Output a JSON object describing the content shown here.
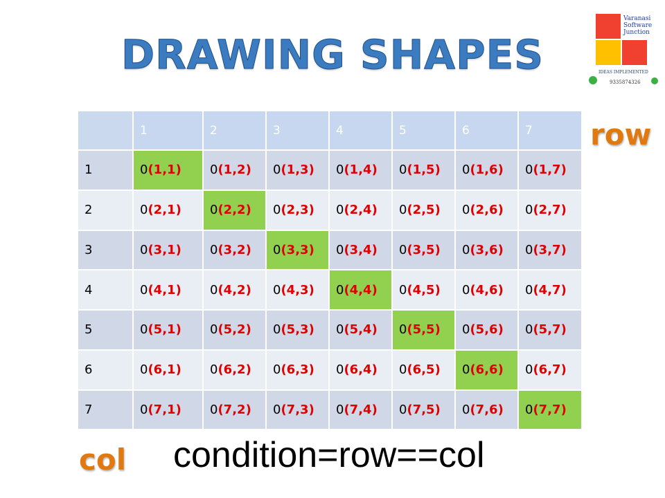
{
  "header": {
    "title": "DRAWING SHAPES"
  },
  "logo": {
    "company": [
      "Varanasi",
      "Software",
      "Junction"
    ],
    "tagline": "IDEAS IMPLEMENTED",
    "phone": "9335874326"
  },
  "row_label": "row",
  "col_label": "col",
  "condition": "condition=row==col",
  "table": {
    "columns": [
      "1",
      "2",
      "3",
      "4",
      "5",
      "6",
      "7"
    ],
    "rows": [
      {
        "label": "1",
        "cells": [
          {
            "zero": "0",
            "pos": "(1,1)",
            "highlight": true
          },
          {
            "zero": "0",
            "pos": "(1,2)"
          },
          {
            "zero": "0",
            "pos": "(1,3)"
          },
          {
            "zero": "0",
            "pos": "(1,4)"
          },
          {
            "zero": "0",
            "pos": "(1,5)"
          },
          {
            "zero": "0",
            "pos": "(1,6)"
          },
          {
            "zero": "0",
            "pos": "(1,7)"
          }
        ]
      },
      {
        "label": "2",
        "cells": [
          {
            "zero": "0",
            "pos": "(2,1)"
          },
          {
            "zero": "0",
            "pos": "(2,2)",
            "highlight": true
          },
          {
            "zero": "0",
            "pos": "(2,3)"
          },
          {
            "zero": "0",
            "pos": "(2,4)"
          },
          {
            "zero": "0",
            "pos": "(2,5)"
          },
          {
            "zero": "0",
            "pos": "(2,6)"
          },
          {
            "zero": "0",
            "pos": "(2,7)"
          }
        ]
      },
      {
        "label": "3",
        "cells": [
          {
            "zero": "0",
            "pos": "(3,1)"
          },
          {
            "zero": "0",
            "pos": "(3,2)"
          },
          {
            "zero": "0",
            "pos": "(3,3)",
            "highlight": true
          },
          {
            "zero": "0",
            "pos": "(3,4)"
          },
          {
            "zero": "0",
            "pos": "(3,5)"
          },
          {
            "zero": "0",
            "pos": "(3,6)"
          },
          {
            "zero": "0",
            "pos": "(3,7)"
          }
        ]
      },
      {
        "label": "4",
        "cells": [
          {
            "zero": "0",
            "pos": "(4,1)"
          },
          {
            "zero": "0",
            "pos": "(4,2)"
          },
          {
            "zero": "0",
            "pos": "(4,3)"
          },
          {
            "zero": "0",
            "pos": "(4,4)",
            "highlight": true
          },
          {
            "zero": "0",
            "pos": "(4,5)"
          },
          {
            "zero": "0",
            "pos": "(4,6)"
          },
          {
            "zero": "0",
            "pos": "(4,7)"
          }
        ]
      },
      {
        "label": "5",
        "cells": [
          {
            "zero": "0",
            "pos": "(5,1)"
          },
          {
            "zero": "0",
            "pos": "(5,2)"
          },
          {
            "zero": "0",
            "pos": "(5,3)"
          },
          {
            "zero": "0",
            "pos": "(5,4)"
          },
          {
            "zero": "0",
            "pos": "(5,5)",
            "highlight": true
          },
          {
            "zero": "0",
            "pos": "(5,6)"
          },
          {
            "zero": "0",
            "pos": "(5,7)"
          }
        ]
      },
      {
        "label": "6",
        "cells": [
          {
            "zero": "0",
            "pos": "(6,1)"
          },
          {
            "zero": "0",
            "pos": "(6,2)"
          },
          {
            "zero": "0",
            "pos": "(6,3)"
          },
          {
            "zero": "0",
            "pos": "(6,4)"
          },
          {
            "zero": "0",
            "pos": "(6,5)"
          },
          {
            "zero": "0",
            "pos": "(6,6)",
            "highlight": true
          },
          {
            "zero": "0",
            "pos": "(6,7)"
          }
        ]
      },
      {
        "label": "7",
        "cells": [
          {
            "zero": "0",
            "pos": "(7,1)"
          },
          {
            "zero": "0",
            "pos": "(7,2)"
          },
          {
            "zero": "0",
            "pos": "(7,3)"
          },
          {
            "zero": "0",
            "pos": "(7,4)"
          },
          {
            "zero": "0",
            "pos": "(7,5)"
          },
          {
            "zero": "0",
            "pos": "(7,6)"
          },
          {
            "zero": "0",
            "pos": "(7,7)",
            "highlight": true
          }
        ]
      }
    ]
  }
}
